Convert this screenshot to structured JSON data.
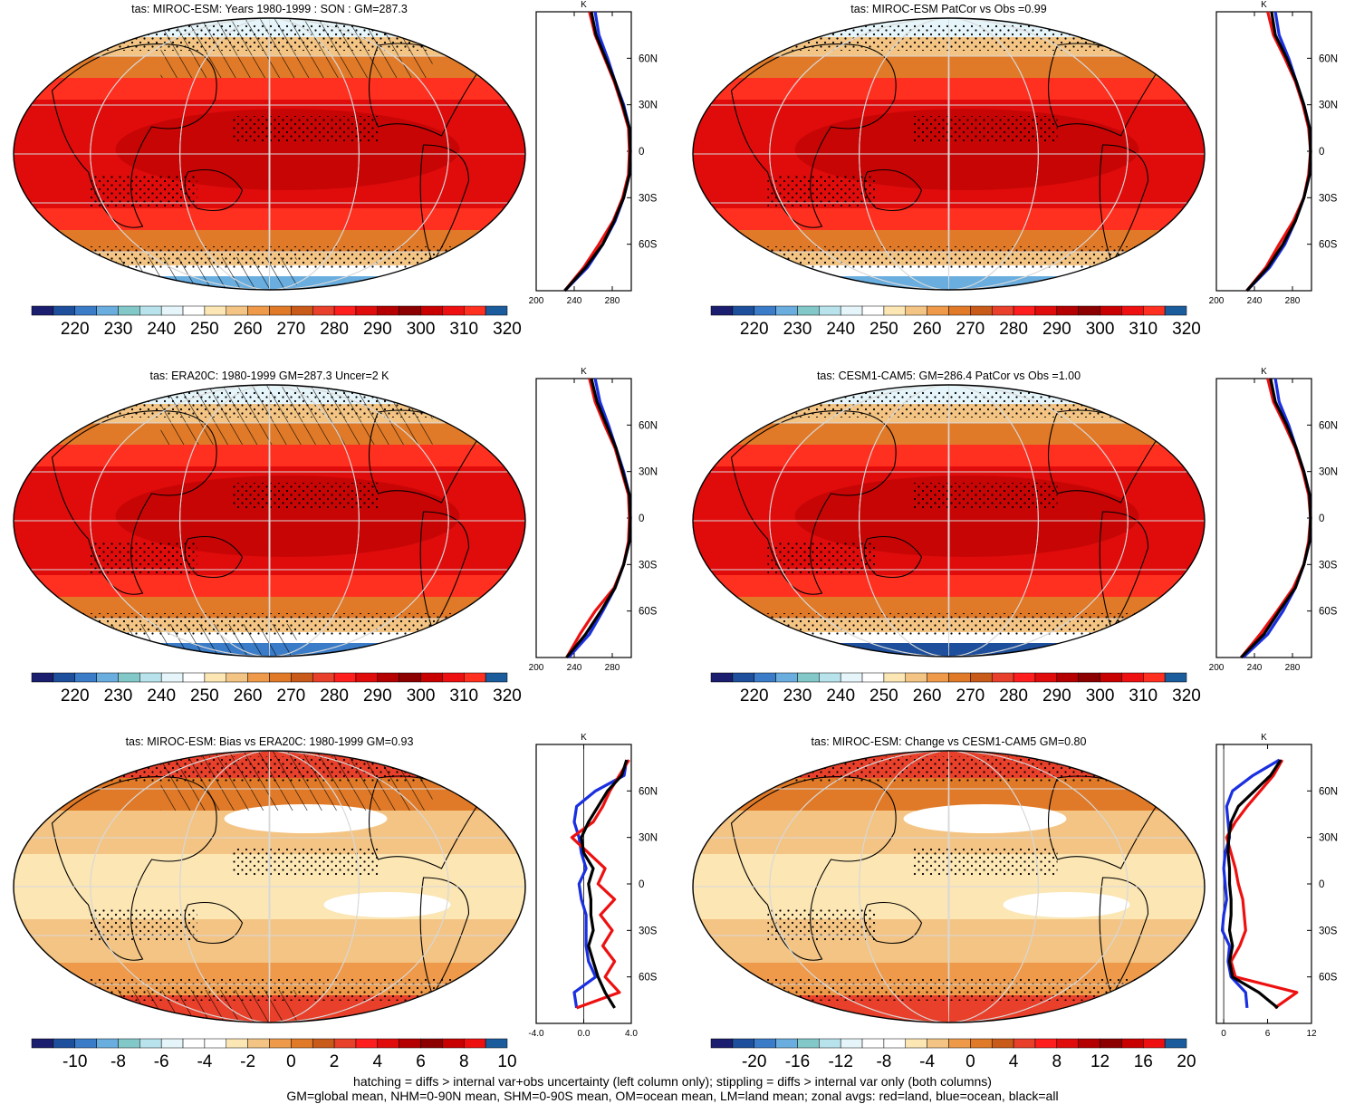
{
  "chart_data": {
    "type": "map",
    "panels": [
      {
        "title": "tas: MIROC-ESM: Years 1980-1999 : SON : GM=287.3",
        "variable": "tas",
        "field": "climatology",
        "colorbar_labels": [
          "220",
          "230",
          "240",
          "250",
          "260",
          "270",
          "280",
          "290",
          "300",
          "310",
          "320"
        ],
        "colorbar_colors": [
          "#1b1e6e",
          "#1e4f9c",
          "#3a7cc8",
          "#6aaee0",
          "#82c8c8",
          "#b8e2ec",
          "#e6f5fa",
          "#ffffff",
          "#fbe6b4",
          "#f3c483",
          "#ee9a4a",
          "#e07a28",
          "#c85a1a",
          "#e8402a",
          "#ff1e1e",
          "#e00c0c",
          "#b40000",
          "#8c0000",
          "#c80000",
          "#ee1010",
          "#ff3020",
          "#1a5c9c"
        ],
        "zonal": {
          "xlabel": "K",
          "xticks": [
            "200",
            "240",
            "280"
          ],
          "xlim": [
            200,
            300
          ],
          "yticks": [
            "60N",
            "30N",
            "0",
            "30S",
            "60S"
          ],
          "lat": [
            90,
            75,
            60,
            45,
            30,
            15,
            0,
            -15,
            -30,
            -45,
            -60,
            -75,
            -90
          ],
          "land": [
            256,
            262,
            272,
            282,
            290,
            297,
            298,
            297,
            291,
            281,
            266,
            250,
            230
          ],
          "ocean": [
            262,
            266,
            275,
            283,
            292,
            298,
            299,
            298,
            292,
            283,
            270,
            254,
            230
          ],
          "all": [
            258,
            263,
            273,
            283,
            291,
            298,
            299,
            298,
            292,
            282,
            270,
            252,
            230
          ]
        }
      },
      {
        "title": "tas: MIROC-ESM PatCor vs Obs =0.99",
        "variable": "tas",
        "field": "climatology",
        "colorbar_labels": [
          "220",
          "230",
          "240",
          "250",
          "260",
          "270",
          "280",
          "290",
          "300",
          "310",
          "320"
        ],
        "zonal": {
          "xlabel": "K",
          "xticks": [
            "200",
            "240",
            "280"
          ],
          "xlim": [
            200,
            300
          ],
          "yticks": [
            "60N",
            "30N",
            "0",
            "30S",
            "60S"
          ],
          "lat": [
            90,
            75,
            60,
            45,
            30,
            15,
            0,
            -15,
            -30,
            -45,
            -60,
            -75,
            -90
          ],
          "land": [
            254,
            260,
            272,
            283,
            291,
            297,
            299,
            297,
            292,
            281,
            266,
            252,
            232
          ],
          "ocean": [
            262,
            266,
            276,
            284,
            292,
            298,
            299,
            298,
            292,
            283,
            272,
            256,
            232
          ],
          "all": [
            258,
            262,
            274,
            284,
            292,
            298,
            299,
            298,
            292,
            283,
            270,
            254,
            232
          ]
        }
      },
      {
        "title": "tas: ERA20C: 1980-1999 GM=287.3 Uncer=2 K",
        "variable": "tas",
        "field": "climatology",
        "colorbar_labels": [
          "220",
          "230",
          "240",
          "250",
          "260",
          "270",
          "280",
          "290",
          "300",
          "310",
          "320"
        ],
        "zonal": {
          "xlabel": "K",
          "xticks": [
            "200",
            "240",
            "280"
          ],
          "xlim": [
            200,
            300
          ],
          "yticks": [
            "60N",
            "30N",
            "0",
            "30S",
            "60S"
          ],
          "lat": [
            90,
            75,
            60,
            45,
            30,
            15,
            0,
            -15,
            -30,
            -45,
            -60,
            -75,
            -90
          ],
          "land": [
            256,
            262,
            272,
            283,
            290,
            297,
            298,
            297,
            292,
            282,
            262,
            246,
            232
          ],
          "ocean": [
            262,
            267,
            276,
            284,
            292,
            298,
            299,
            298,
            292,
            283,
            270,
            256,
            234
          ],
          "all": [
            258,
            264,
            274,
            284,
            291,
            298,
            299,
            298,
            292,
            283,
            268,
            252,
            232
          ]
        }
      },
      {
        "title": "tas: CESM1-CAM5: GM=286.4 PatCor vs Obs =1.00",
        "variable": "tas",
        "field": "climatology",
        "colorbar_labels": [
          "220",
          "230",
          "240",
          "250",
          "260",
          "270",
          "280",
          "290",
          "300",
          "310",
          "320"
        ],
        "zonal": {
          "xlabel": "K",
          "xticks": [
            "200",
            "240",
            "280"
          ],
          "xlim": [
            200,
            300
          ],
          "yticks": [
            "60N",
            "30N",
            "0",
            "30S",
            "60S"
          ],
          "lat": [
            90,
            75,
            60,
            45,
            30,
            15,
            0,
            -15,
            -30,
            -45,
            -60,
            -75,
            -90
          ],
          "land": [
            254,
            260,
            272,
            283,
            291,
            297,
            299,
            297,
            292,
            281,
            264,
            246,
            226
          ],
          "ocean": [
            262,
            266,
            276,
            284,
            292,
            298,
            299,
            298,
            292,
            283,
            270,
            254,
            228
          ],
          "all": [
            257,
            262,
            274,
            284,
            292,
            298,
            299,
            298,
            292,
            283,
            266,
            250,
            226
          ]
        }
      },
      {
        "title": "tas: MIROC-ESM: Bias vs ERA20C: 1980-1999  GM=0.93",
        "variable": "tas",
        "field": "difference",
        "colorbar_labels": [
          "-10",
          "-8",
          "-6",
          "-4",
          "-2",
          "0",
          "2",
          "4",
          "6",
          "8",
          "10"
        ],
        "zonal": {
          "xlabel": "K",
          "xticks": [
            "-4.0",
            "0.0",
            "4.0"
          ],
          "xlim": [
            -4,
            4
          ],
          "yticks": [
            "60N",
            "30N",
            "0",
            "30S",
            "60S"
          ],
          "lat": [
            80,
            70,
            60,
            50,
            40,
            30,
            20,
            10,
            0,
            -10,
            -20,
            -30,
            -40,
            -50,
            -60,
            -70,
            -80
          ],
          "land": [
            3.8,
            3.0,
            2.2,
            1.6,
            0.8,
            -1.0,
            0.4,
            1.8,
            1.2,
            2.6,
            1.4,
            2.4,
            1.6,
            2.6,
            1.8,
            3.0,
            -0.6
          ],
          "ocean": [
            3.6,
            3.4,
            1.0,
            -0.6,
            -0.8,
            -0.4,
            -0.2,
            0.2,
            -0.4,
            -0.2,
            0.2,
            0.2,
            0.2,
            0.4,
            1.0,
            -0.8,
            -0.6
          ],
          "all": [
            3.6,
            3.2,
            2.0,
            1.2,
            0.4,
            -0.2,
            0.0,
            0.8,
            0.4,
            0.6,
            0.6,
            0.8,
            0.4,
            0.8,
            1.2,
            1.8,
            2.6
          ]
        }
      },
      {
        "title": "tas: MIROC-ESM: Change vs CESM1-CAM5 GM=0.80",
        "variable": "tas",
        "field": "difference",
        "colorbar_labels": [
          "-20",
          "-16",
          "-12",
          "-8",
          "-4",
          "0",
          "4",
          "8",
          "12",
          "16",
          "20"
        ],
        "zonal": {
          "xlabel": "K",
          "xticks": [
            "0",
            "6",
            "12"
          ],
          "xlim": [
            -1,
            12
          ],
          "yticks": [
            "60N",
            "30N",
            "0",
            "30S",
            "60S"
          ],
          "lat": [
            80,
            70,
            60,
            50,
            40,
            30,
            20,
            10,
            0,
            -10,
            -20,
            -30,
            -40,
            -50,
            -60,
            -70,
            -80
          ],
          "land": [
            8.0,
            6.8,
            5.0,
            3.2,
            1.6,
            0.4,
            1.0,
            1.6,
            2.0,
            2.6,
            2.8,
            3.0,
            2.2,
            1.0,
            1.6,
            10.0,
            7.0
          ],
          "ocean": [
            7.6,
            4.0,
            1.2,
            0.4,
            0.6,
            0.8,
            0.2,
            0.0,
            0.2,
            0.4,
            0.0,
            -0.2,
            0.8,
            0.6,
            1.0,
            3.0,
            3.2
          ],
          "all": [
            7.8,
            6.4,
            4.2,
            2.0,
            1.0,
            0.7,
            0.6,
            0.8,
            0.8,
            1.0,
            1.0,
            0.8,
            1.2,
            0.8,
            1.2,
            4.8,
            7.4
          ]
        }
      }
    ],
    "footer": [
      "hatching = diffs > internal var+obs uncertainty (left column only); stippling = diffs > internal var only (both columns)",
      "GM=global mean, NHM=0-90N mean, SHM=0-90S mean, OM=ocean mean, LM=land mean; zonal avgs: red=land, blue=ocean, black=all"
    ],
    "zonal_line_colors": {
      "land": "#ee1010",
      "ocean": "#1a2fe0",
      "all": "#000000"
    }
  }
}
